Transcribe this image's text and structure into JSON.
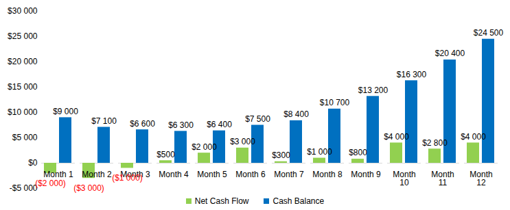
{
  "chart_data": {
    "type": "bar",
    "categories": [
      "Month 1",
      "Month 2",
      "Month 3",
      "Month 4",
      "Month 5",
      "Month 6",
      "Month 7",
      "Month 8",
      "Month 9",
      "Month 10",
      "Month 11",
      "Month 12"
    ],
    "series": [
      {
        "name": "Net Cash Flow",
        "color": "#92D050",
        "values": [
          -2000,
          -3000,
          -1000,
          500,
          2000,
          3000,
          300,
          1000,
          800,
          4000,
          2800,
          4000
        ],
        "value_labels": [
          "($2 000)",
          "($3 000)",
          "($1 000)",
          "$500",
          "$2 000",
          "$3 000",
          "$300",
          "$1 000",
          "$800",
          "$4 000",
          "$2 800",
          "$4 000"
        ]
      },
      {
        "name": "Cash Balance",
        "color": "#0070C0",
        "values": [
          9000,
          7100,
          6600,
          6300,
          6400,
          7500,
          8400,
          10700,
          13200,
          16300,
          20400,
          24500
        ],
        "value_labels": [
          "$9 000",
          "$7 100",
          "$6 600",
          "$6 300",
          "$6 400",
          "$7 500",
          "$8 400",
          "$10 700",
          "$13 200",
          "$16 300",
          "$20 400",
          "$24 500"
        ]
      }
    ],
    "ylim": [
      -5000,
      30000
    ],
    "yticks": [
      {
        "value": -5000,
        "label": "-$5 000"
      },
      {
        "value": 0,
        "label": "$0"
      },
      {
        "value": 5000,
        "label": "$5 000"
      },
      {
        "value": 10000,
        "label": "$10 000"
      },
      {
        "value": 15000,
        "label": "$15 000"
      },
      {
        "value": 20000,
        "label": "$20 000"
      },
      {
        "value": 25000,
        "label": "$25 000"
      },
      {
        "value": 30000,
        "label": "$30 000"
      }
    ],
    "grid": false,
    "data_labels": true,
    "legend": "bottom"
  }
}
